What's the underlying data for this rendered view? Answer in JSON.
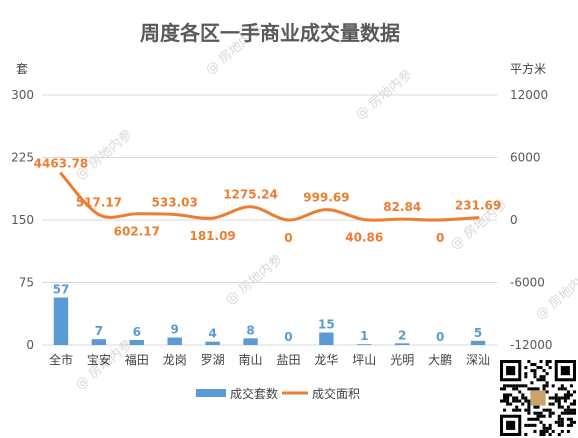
{
  "chart_data": {
    "type": "bar+line",
    "title": "周度各区一手商业成交量数据",
    "left_axis_unit": "套",
    "right_axis_unit": "平方米",
    "categories": [
      "全市",
      "宝安",
      "福田",
      "龙岗",
      "罗湖",
      "南山",
      "盐田",
      "龙华",
      "坪山",
      "光明",
      "大鹏",
      "深汕"
    ],
    "left_ylim": [
      0,
      300
    ],
    "left_ticks": [
      "0",
      "75",
      "150",
      "225",
      "300"
    ],
    "right_ylim": [
      -12000,
      12000
    ],
    "right_ticks": [
      "-12000",
      "-6000",
      "0",
      "6000",
      "12000"
    ],
    "grid": true,
    "legend_position": "bottom",
    "series": [
      {
        "name": "成交套数",
        "type": "bar",
        "color": "#5b9bd5",
        "axis": "left",
        "values": [
          57,
          7,
          6,
          9,
          4,
          8,
          0,
          15,
          1,
          2,
          0,
          5
        ],
        "labels": [
          "57",
          "7",
          "6",
          "9",
          "4",
          "8",
          "0",
          "15",
          "1",
          "2",
          "0",
          "5"
        ]
      },
      {
        "name": "成交面积",
        "type": "line",
        "color": "#ed7d31",
        "axis": "right",
        "values": [
          4463.78,
          517.17,
          602.17,
          533.03,
          181.09,
          1275.24,
          0,
          999.69,
          40.86,
          82.84,
          0,
          231.69
        ],
        "labels": [
          "4463.78",
          "517.17",
          "602.17",
          "533.03",
          "181.09",
          "1275.24",
          "0",
          "999.69",
          "40.86",
          "82.84",
          "0",
          "231.69"
        ]
      }
    ]
  },
  "watermark": {
    "text": "@ 房地内参"
  },
  "qr_code": {
    "icon": "qr-code-icon"
  }
}
